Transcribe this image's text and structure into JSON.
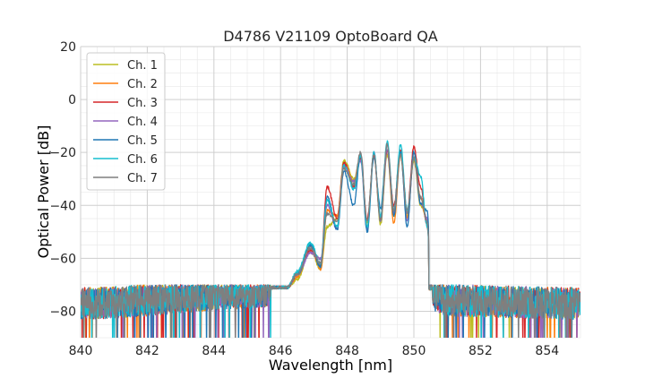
{
  "chart_data": {
    "type": "line",
    "title": "D4786 V21109 OptoBoard QA",
    "xlabel": "Wavelength [nm]",
    "ylabel": "Optical Power [dB]",
    "xlim": [
      840,
      855
    ],
    "ylim": [
      -90,
      20
    ],
    "x_ticks": [
      840,
      842,
      844,
      846,
      848,
      850,
      852,
      854
    ],
    "y_ticks": [
      -80,
      -60,
      -40,
      -20,
      0,
      20
    ],
    "x_tick_labels": [
      "840",
      "842",
      "844",
      "846",
      "848",
      "850",
      "852",
      "854"
    ],
    "y_tick_labels": [
      "−80",
      "−60",
      "−40",
      "−20",
      "0",
      "20"
    ],
    "grid": true,
    "legend_position": "top-left",
    "noise_floor_db": -77,
    "x": [
      840.0,
      845.4,
      845.8,
      846.2,
      846.5,
      846.9,
      847.2,
      847.4,
      847.7,
      847.9,
      848.2,
      848.4,
      848.6,
      848.8,
      849.0,
      849.2,
      849.4,
      849.6,
      849.8,
      850.0,
      850.2,
      850.4,
      850.5,
      850.6,
      851.0,
      855.0
    ],
    "series": [
      {
        "name": "Ch. 1",
        "color": "#bcbd22",
        "values": [
          -77,
          -73,
          -71,
          -71,
          -68,
          -57,
          -64,
          -48,
          -45,
          -23,
          -30,
          -22,
          -47,
          -20,
          -47,
          -21,
          -44,
          -21,
          -44,
          -23,
          -40,
          -45,
          -60,
          -74,
          -76,
          -77
        ]
      },
      {
        "name": "Ch. 2",
        "color": "#ff7f0e",
        "values": [
          -77,
          -73,
          -71,
          -71,
          -67,
          -55,
          -64,
          -42,
          -44,
          -24,
          -31,
          -21,
          -48,
          -21,
          -45,
          -19,
          -47,
          -21,
          -45,
          -22,
          -37,
          -47,
          -62,
          -73,
          -76,
          -77
        ]
      },
      {
        "name": "Ch. 3",
        "color": "#d62728",
        "values": [
          -77,
          -73,
          -71,
          -71,
          -66,
          -57,
          -62,
          -33,
          -45,
          -24,
          -33,
          -22,
          -45,
          -21,
          -45,
          -19,
          -40,
          -19,
          -42,
          -18,
          -33,
          -48,
          -63,
          -73,
          -76,
          -77
        ]
      },
      {
        "name": "Ch. 4",
        "color": "#9467bd",
        "values": [
          -77,
          -73,
          -71,
          -71,
          -66,
          -58,
          -60,
          -40,
          -49,
          -25,
          -31,
          -23,
          -49,
          -20,
          -46,
          -19,
          -43,
          -20,
          -46,
          -22,
          -39,
          -45,
          -61,
          -74,
          -76,
          -77
        ]
      },
      {
        "name": "Ch. 5",
        "color": "#1f77b4",
        "values": [
          -77,
          -73,
          -71,
          -71,
          -66,
          -55,
          -63,
          -37,
          -49,
          -27,
          -40,
          -21,
          -50,
          -22,
          -41,
          -17,
          -44,
          -20,
          -48,
          -20,
          -39,
          -42,
          -61,
          -75,
          -76,
          -77
        ]
      },
      {
        "name": "Ch. 6",
        "color": "#17becf",
        "values": [
          -77,
          -73,
          -71,
          -71,
          -65,
          -54,
          -62,
          -38,
          -48,
          -25,
          -34,
          -21,
          -48,
          -20,
          -44,
          -16,
          -42,
          -17,
          -42,
          -22,
          -29,
          -48,
          -62,
          -72,
          -76,
          -77
        ]
      },
      {
        "name": "Ch. 7",
        "color": "#7f7f7f",
        "values": [
          -77,
          -73,
          -71,
          -71,
          -66,
          -56,
          -62,
          -43,
          -46,
          -26,
          -32,
          -20,
          -46,
          -21,
          -46,
          -17,
          -42,
          -21,
          -43,
          -22,
          -37,
          -46,
          -62,
          -74,
          -76,
          -77
        ]
      }
    ]
  }
}
